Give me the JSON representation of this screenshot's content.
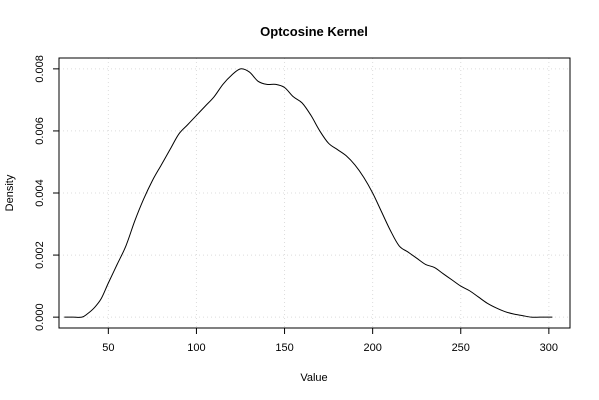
{
  "chart_data": {
    "type": "line",
    "title": "Optcosine Kernel",
    "xlabel": "Value",
    "ylabel": "Density",
    "xlim": [
      22,
      312
    ],
    "ylim": [
      -0.00035,
      0.00835
    ],
    "x_ticks": [
      50,
      100,
      150,
      200,
      250,
      300
    ],
    "y_ticks": [
      0.0,
      0.002,
      0.004,
      0.006,
      0.008
    ],
    "x_tick_labels": [
      "50",
      "100",
      "150",
      "200",
      "250",
      "300"
    ],
    "y_tick_labels": [
      "0.000",
      "0.002",
      "0.004",
      "0.006",
      "0.008"
    ],
    "grid": true,
    "series": [
      {
        "x": [
          25,
          30,
          35,
          38,
          42,
          46,
          50,
          55,
          60,
          65,
          70,
          75,
          80,
          85,
          90,
          95,
          100,
          105,
          110,
          115,
          120,
          125,
          130,
          135,
          140,
          145,
          150,
          155,
          160,
          165,
          170,
          175,
          180,
          185,
          190,
          195,
          200,
          205,
          210,
          215,
          220,
          225,
          230,
          235,
          240,
          245,
          250,
          255,
          260,
          265,
          270,
          275,
          280,
          285,
          290,
          295,
          302
        ],
        "y": [
          0.0,
          0.0,
          0.0,
          0.0001,
          0.0003,
          0.0006,
          0.0011,
          0.0017,
          0.0023,
          0.0031,
          0.0038,
          0.0044,
          0.0049,
          0.0054,
          0.0059,
          0.0062,
          0.0065,
          0.0068,
          0.0071,
          0.0075,
          0.0078,
          0.008,
          0.0079,
          0.0076,
          0.0075,
          0.0075,
          0.0074,
          0.0071,
          0.0069,
          0.0065,
          0.006,
          0.0056,
          0.0054,
          0.0052,
          0.0049,
          0.0045,
          0.004,
          0.0034,
          0.0028,
          0.0023,
          0.0021,
          0.0019,
          0.0017,
          0.0016,
          0.0014,
          0.0012,
          0.001,
          0.00085,
          0.00065,
          0.00045,
          0.0003,
          0.00018,
          0.0001,
          5e-05,
          0.0,
          0.0,
          0.0
        ]
      }
    ]
  }
}
